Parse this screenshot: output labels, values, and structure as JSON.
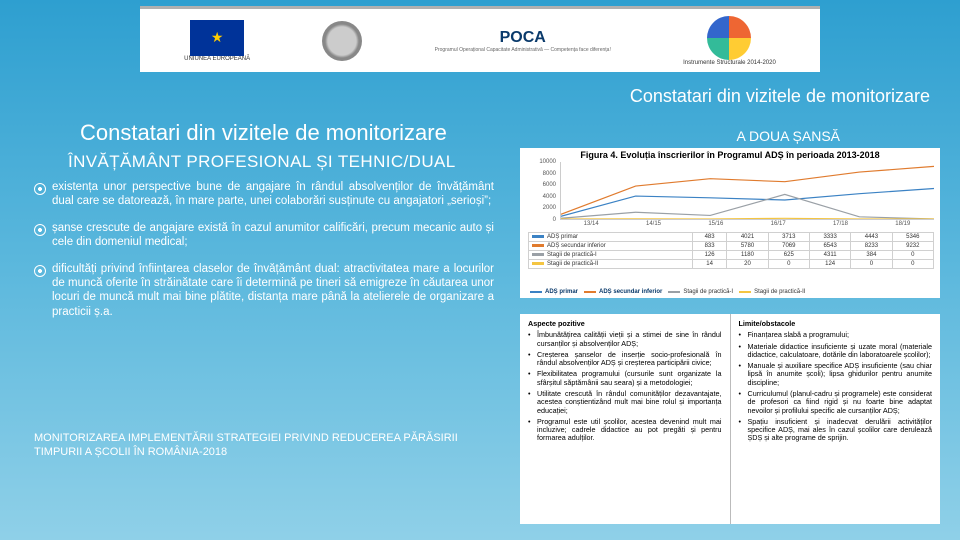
{
  "logos": {
    "eu_text": "UNIUNEA EUROPEANĂ",
    "poca": "POCA",
    "poca_sub": "Programul Operațional Capacitate Administrativă — Competența face diferența!",
    "struct_text": "Instrumente Structurale 2014-2020"
  },
  "titles": {
    "right": "Constatari din vizitele de monitorizare",
    "left": "Constatari din vizitele de monitorizare",
    "sub_left": "ÎNVĂȚĂMÂNT PROFESIONAL ȘI TEHNIC/DUAL",
    "right2": "A DOUA ȘANSĂ"
  },
  "bullets": [
    "existența unor perspective bune de angajare în rândul absolvenților de învățământ dual care se datorează, în mare parte, unei colaborări susținute cu angajatori „serioși”;",
    "șanse crescute de angajare există în cazul anumitor calificări, precum mecanic auto și cele din domeniul medical;",
    "dificultăți privind înființarea claselor de învățământ dual: atractivitatea mare a locurilor de muncă oferite în străinătate care îi determină pe tineri să emigreze în căutarea unor locuri de muncă mult mai bine plătite, distanța mare până la atelierele de organizare a practicii ș.a."
  ],
  "footer": "MONITORIZAREA IMPLEMENTĂRII STRATEGIEI PRIVIND REDUCEREA PĂRĂSIRII TIMPURII A ȘCOLII ÎN ROMÂNIA-2018",
  "chart": {
    "type": "line-with-table",
    "title": "Figura 4. Evoluția înscrierilor în Programul ADȘ în perioada 2013-2018",
    "ylim": [
      0,
      10000
    ],
    "yticks": [
      0,
      2000,
      4000,
      6000,
      8000,
      10000
    ],
    "categories": [
      "13/14",
      "14/15",
      "15/16",
      "16/17",
      "17/18",
      "18/19"
    ],
    "series": [
      {
        "name": "ADȘ primar",
        "color": "#3b82c4",
        "values": [
          483,
          4021,
          3713,
          3333,
          4443,
          5346
        ]
      },
      {
        "name": "ADȘ secundar inferior",
        "color": "#e07b2e",
        "values": [
          833,
          5780,
          7069,
          6543,
          8233,
          9232
        ]
      },
      {
        "name": "Stagii de practică-I",
        "color": "#9aa0a6",
        "values": [
          126,
          1180,
          625,
          4311,
          384,
          0
        ]
      },
      {
        "name": "Stagii de practică-II",
        "color": "#f4c542",
        "values": [
          14,
          20,
          0,
          124,
          0,
          0
        ]
      }
    ],
    "background_color": "#ffffff",
    "grid_color": "#d0d0d0",
    "font_size_title": 9,
    "font_size": 6
  },
  "pos_neg": {
    "left_header": "Aspecte pozitive",
    "right_header": "Limite/obstacole",
    "left": [
      "Îmbunătățirea calității vieții și a stimei de sine în rândul cursanților și absolvenților ADȘ;",
      "Creșterea șanselor de inserție socio-profesională în rândul absolvenților ADȘ și creșterea participării civice;",
      "Flexibilitatea programului (cursurile sunt organizate la sfârșitul săptămânii sau seara) și a metodologiei;",
      "Utilitate crescută în rândul comunităților dezavantajate, acestea conștientizând mult mai bine rolul și importanța educației;",
      "Programul este util școlilor, acestea devenind mult mai incluzive; cadrele didactice au pot pregăti și pentru formarea adulților."
    ],
    "right": [
      "Finanțarea slabă a programului;",
      "Materiale didactice insuficiente și uzate moral (materiale didactice, calculatoare, dotările din laboratoarele școlilor);",
      "Manuale și auxiliare specifice ADȘ insuficiente (sau chiar lipsă în anumite școli); lipsa ghidurilor pentru anumite discipline;",
      "Curriculumul (planul-cadru și programele) este considerat de profesori ca fiind rigid și nu foarte bine adaptat nevoilor și profilului specific ale cursanților ADȘ;",
      "Spațiu insuficient și inadecvat derulării activităților specifice ADȘ, mai ales în cazul școlilor care derulează ȘDȘ și alte programe de sprijin."
    ]
  }
}
